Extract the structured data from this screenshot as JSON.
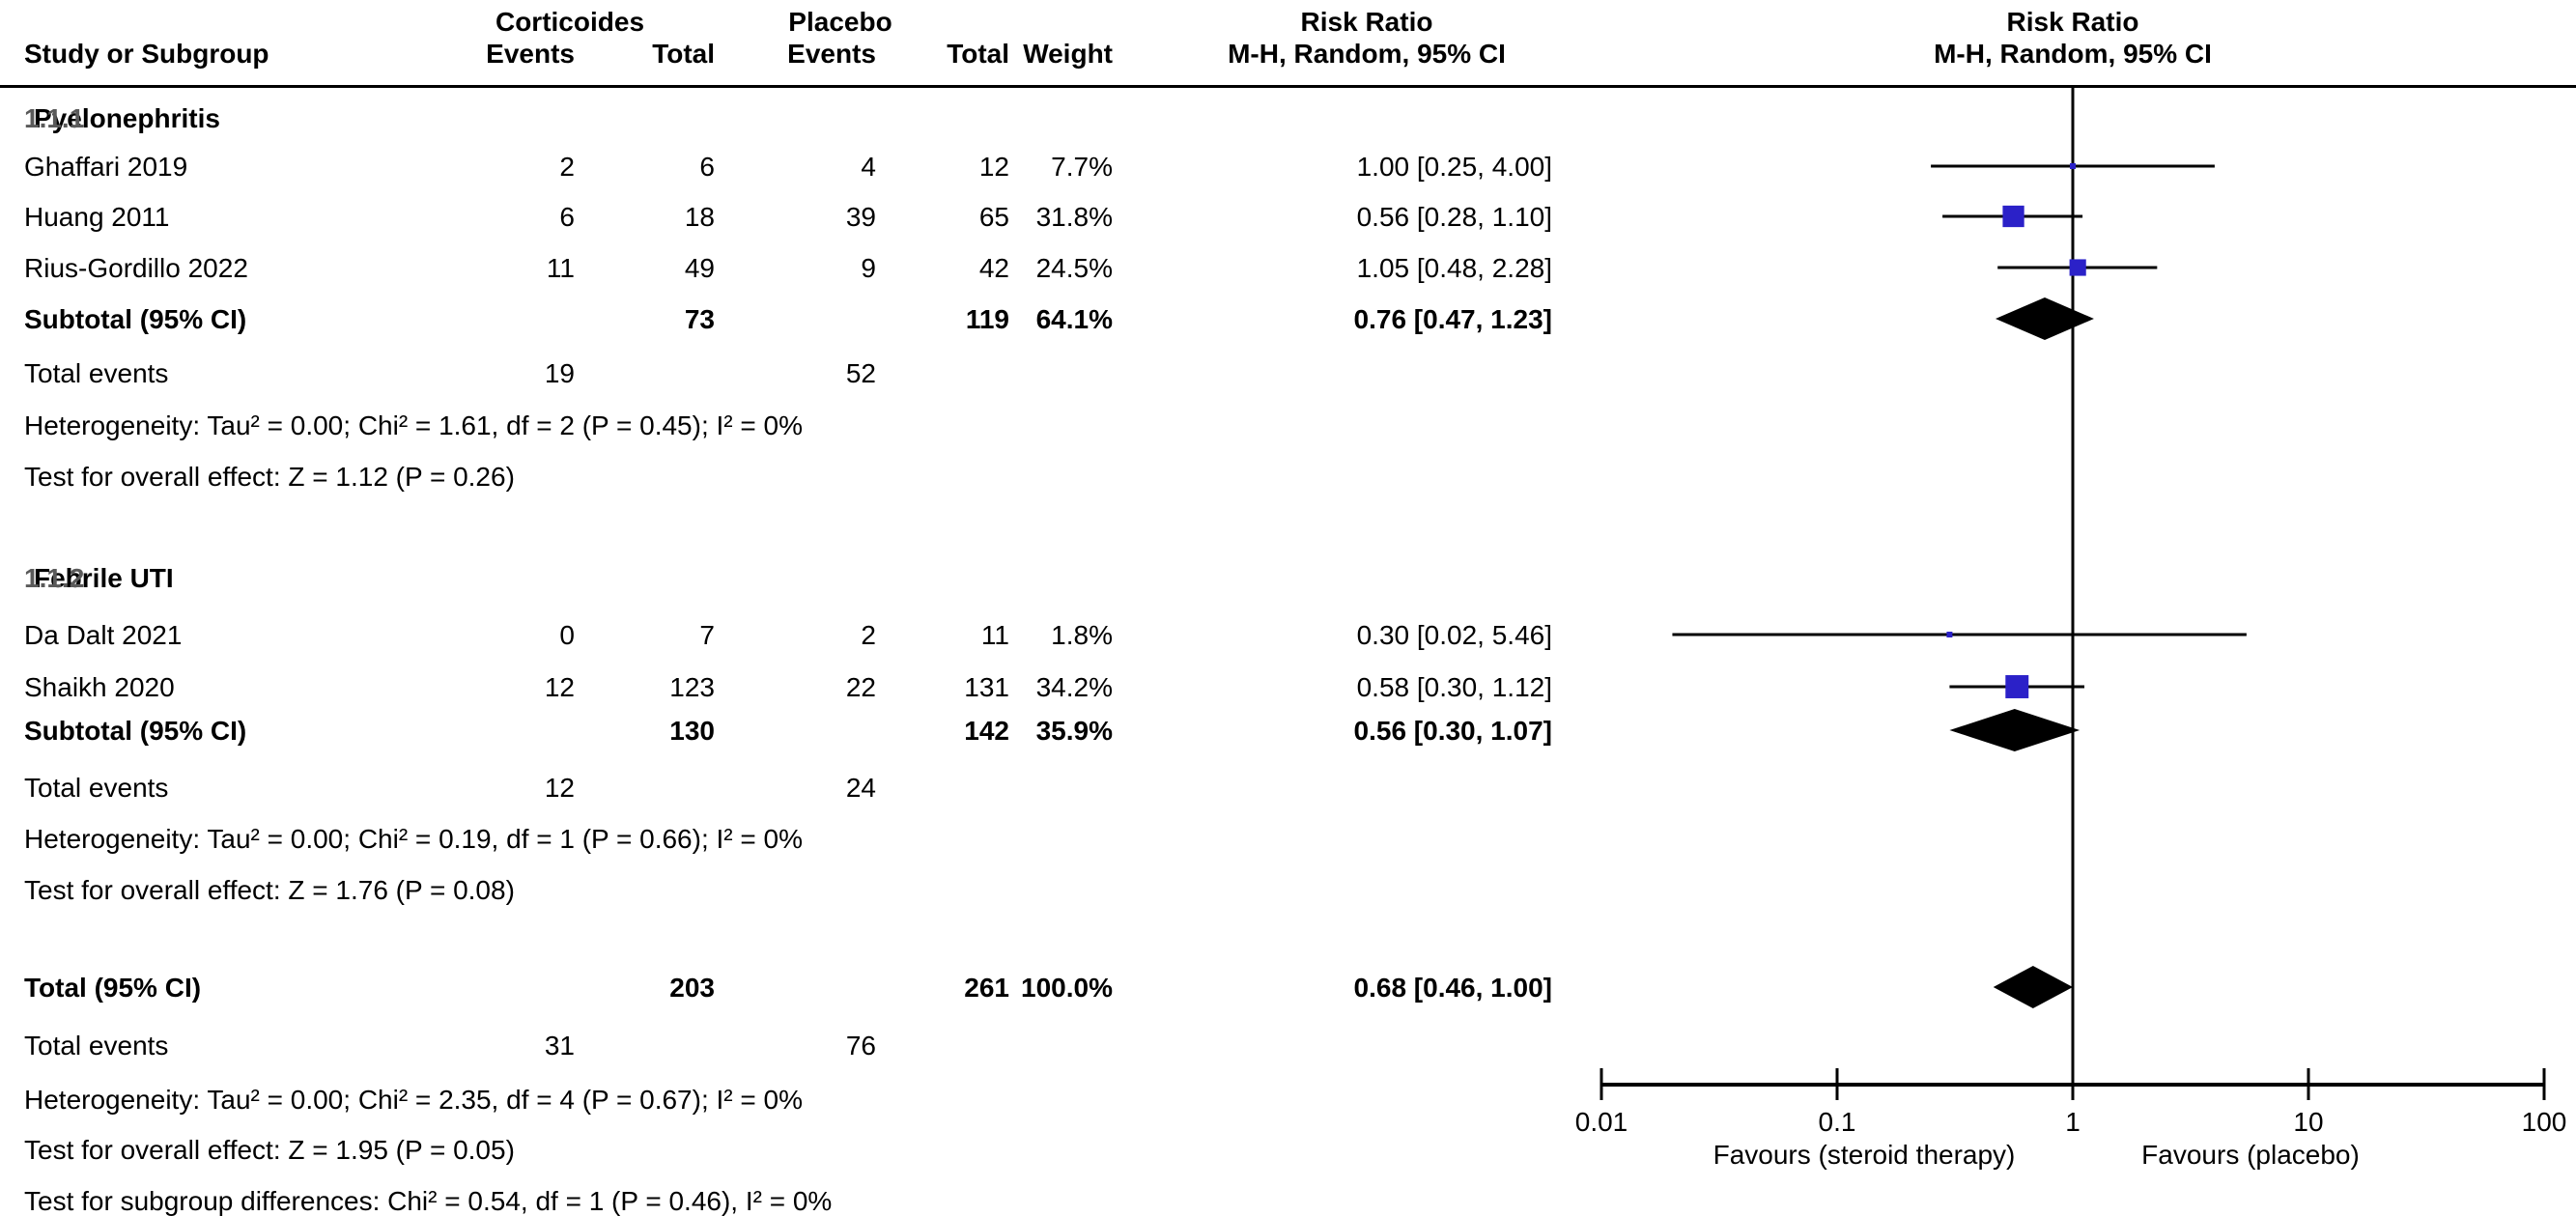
{
  "header": {
    "group1": "Corticoides",
    "group2": "Placebo",
    "col_study": "Study or Subgroup",
    "col_events": "Events",
    "col_total": "Total",
    "col_weight": "Weight",
    "rr_col_line1": "Risk Ratio",
    "rr_col_line2": "M-H, Random, 95% CI",
    "plot_line1": "Risk Ratio",
    "plot_line2": "M-H, Random, 95% CI"
  },
  "sections": [
    {
      "code": "1.1.1",
      "title": "Pyelonephritis",
      "studies": [
        {
          "name": "Ghaffari 2019",
          "events1": "2",
          "total1": "6",
          "events2": "4",
          "total2": "12",
          "weight": "7.7%",
          "rr_text": "1.00 [0.25, 4.00]"
        },
        {
          "name": "Huang 2011",
          "events1": "6",
          "total1": "18",
          "events2": "39",
          "total2": "65",
          "weight": "31.8%",
          "rr_text": "0.56 [0.28, 1.10]"
        },
        {
          "name": "Rius-Gordillo 2022",
          "events1": "11",
          "total1": "49",
          "events2": "9",
          "total2": "42",
          "weight": "24.5%",
          "rr_text": "1.05 [0.48, 2.28]"
        }
      ],
      "subtotal": {
        "label": "Subtotal (95% CI)",
        "total1": "73",
        "total2": "119",
        "weight": "64.1%",
        "rr_text": "0.76 [0.47, 1.23]"
      },
      "total_events_label": "Total events",
      "total_events1": "19",
      "total_events2": "52",
      "heterogeneity": "Heterogeneity: Tau² = 0.00; Chi² = 1.61, df = 2 (P = 0.45); I² = 0%",
      "overall_effect": "Test for overall effect: Z = 1.12 (P = 0.26)"
    },
    {
      "code": "1.1.2",
      "title": "Febrile UTI",
      "studies": [
        {
          "name": "Da Dalt 2021",
          "events1": "0",
          "total1": "7",
          "events2": "2",
          "total2": "11",
          "weight": "1.8%",
          "rr_text": "0.30 [0.02, 5.46]"
        },
        {
          "name": "Shaikh 2020",
          "events1": "12",
          "total1": "123",
          "events2": "22",
          "total2": "131",
          "weight": "34.2%",
          "rr_text": "0.58 [0.30, 1.12]"
        }
      ],
      "subtotal": {
        "label": "Subtotal (95% CI)",
        "total1": "130",
        "total2": "142",
        "weight": "35.9%",
        "rr_text": "0.56 [0.30, 1.07]"
      },
      "total_events_label": "Total events",
      "total_events1": "12",
      "total_events2": "24",
      "heterogeneity": "Heterogeneity: Tau² = 0.00; Chi² = 0.19, df = 1 (P = 0.66); I² = 0%",
      "overall_effect": "Test for overall effect: Z = 1.76 (P = 0.08)"
    }
  ],
  "total": {
    "label": "Total (95% CI)",
    "total1": "203",
    "total2": "261",
    "weight": "100.0%",
    "rr_text": "0.68 [0.46, 1.00]",
    "total_events_label": "Total events",
    "events1": "31",
    "events2": "76",
    "heterogeneity": "Heterogeneity: Tau² = 0.00; Chi² = 2.35, df = 4 (P = 0.67); I² = 0%",
    "overall_effect": "Test for overall effect: Z = 1.95 (P = 0.05)",
    "subgroup_diff": "Test for subgroup differences: Chi² = 0.54, df = 1 (P = 0.46), I² = 0%"
  },
  "axis": {
    "tick_labels": [
      "0.01",
      "0.1",
      "1",
      "10",
      "100"
    ],
    "favours_left": "Favours (steroid therapy)",
    "favours_right": "Favours (placebo)"
  },
  "colors": {
    "marker_blue": "#2b21c8",
    "diamond_black": "#000000",
    "line_black": "#000000"
  },
  "chart_data": {
    "type": "forest",
    "effect_measure": "Risk Ratio, M-H, Random, 95% CI",
    "x_scale": "log10",
    "x_ticks": [
      0.01,
      0.1,
      1,
      10,
      100
    ],
    "null_value": 1,
    "studies": [
      {
        "id": "ghaffari-2019",
        "label": "Ghaffari 2019",
        "rr": 1.0,
        "ci_low": 0.25,
        "ci_high": 4.0,
        "weight_pct": 7.7
      },
      {
        "id": "huang-2011",
        "label": "Huang 2011",
        "rr": 0.56,
        "ci_low": 0.28,
        "ci_high": 1.1,
        "weight_pct": 31.8
      },
      {
        "id": "rius-gordillo-2022",
        "label": "Rius-Gordillo 2022",
        "rr": 1.05,
        "ci_low": 0.48,
        "ci_high": 2.28,
        "weight_pct": 24.5
      },
      {
        "id": "da-dalt-2021",
        "label": "Da Dalt 2021",
        "rr": 0.3,
        "ci_low": 0.02,
        "ci_high": 5.46,
        "weight_pct": 1.8
      },
      {
        "id": "shaikh-2020",
        "label": "Shaikh 2020",
        "rr": 0.58,
        "ci_low": 0.3,
        "ci_high": 1.12,
        "weight_pct": 34.2
      }
    ],
    "diamonds": [
      {
        "id": "subtotal-pyelonephritis",
        "label": "Subtotal Pyelonephritis",
        "rr": 0.76,
        "ci_low": 0.47,
        "ci_high": 1.23
      },
      {
        "id": "subtotal-febrile-uti",
        "label": "Subtotal Febrile UTI",
        "rr": 0.56,
        "ci_low": 0.3,
        "ci_high": 1.07
      },
      {
        "id": "overall-total",
        "label": "Total",
        "rr": 0.68,
        "ci_low": 0.46,
        "ci_high": 1.0
      }
    ]
  }
}
